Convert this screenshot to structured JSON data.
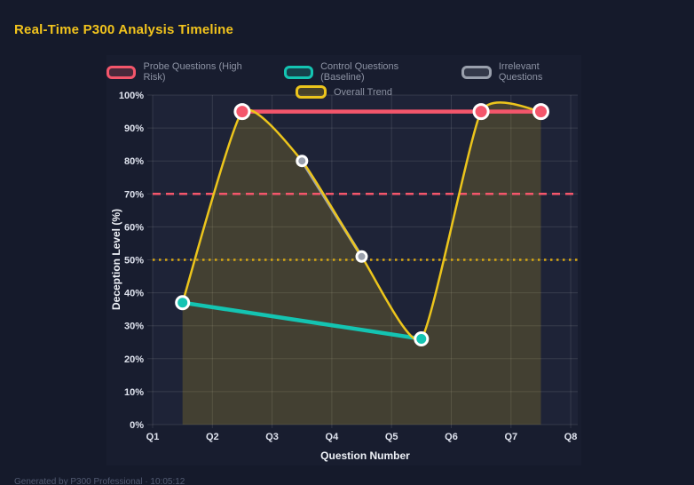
{
  "page": {
    "title": "Real-Time P300 Analysis Timeline",
    "title_color": "#f2c41d",
    "background_color": "#151a2b",
    "footer": "Generated by P300 Professional · 10:05:12"
  },
  "chart_data": {
    "type": "line",
    "title": "Real-Time P300 Analysis Timeline",
    "xlabel": "Question Number",
    "ylabel": "Deception Level (%)",
    "x_ticks": [
      "Q1",
      "Q2",
      "Q3",
      "Q4",
      "Q5",
      "Q6",
      "Q7",
      "Q8"
    ],
    "y_ticks": [
      "0%",
      "10%",
      "20%",
      "30%",
      "40%",
      "50%",
      "60%",
      "70%",
      "80%",
      "90%",
      "100%"
    ],
    "xlim": [
      1,
      8
    ],
    "ylim": [
      0,
      100
    ],
    "grid": true,
    "legend_position": "top",
    "plot_background": "#1e2337",
    "series": [
      {
        "name": "Probe Questions (High Risk)",
        "color": "#f4566b",
        "shape": "line",
        "points": [
          [
            2.5,
            95
          ],
          [
            6.5,
            95
          ],
          [
            7.5,
            95
          ]
        ],
        "point_radius": 8,
        "line_width": 4.5
      },
      {
        "name": "Control Questions (Baseline)",
        "color": "#14c4b2",
        "shape": "line",
        "points": [
          [
            1.5,
            37
          ],
          [
            5.5,
            26
          ]
        ],
        "point_radius": 7,
        "line_width": 4.5
      },
      {
        "name": "Irrelevant Questions",
        "color": "#9aa0ad",
        "shape": "line",
        "points": [
          [
            3.5,
            80
          ],
          [
            4.5,
            51
          ]
        ],
        "point_radius": 5.5,
        "line_width": 3.5
      },
      {
        "name": "Overall Trend",
        "color": "#ecc51c",
        "shape": "spline",
        "fill": "rgba(236,197,28,0.18)",
        "points": [
          [
            1.5,
            37
          ],
          [
            2.5,
            95
          ],
          [
            3.5,
            80
          ],
          [
            4.5,
            51
          ],
          [
            5.5,
            26
          ],
          [
            6.5,
            95
          ],
          [
            7.5,
            95
          ]
        ],
        "point_radius": 0,
        "line_width": 2.5
      }
    ],
    "thresholds": [
      {
        "value": 70,
        "color": "#f4566b",
        "style": "dashed"
      },
      {
        "value": 50,
        "color": "#d8a712",
        "style": "dotted"
      }
    ]
  }
}
